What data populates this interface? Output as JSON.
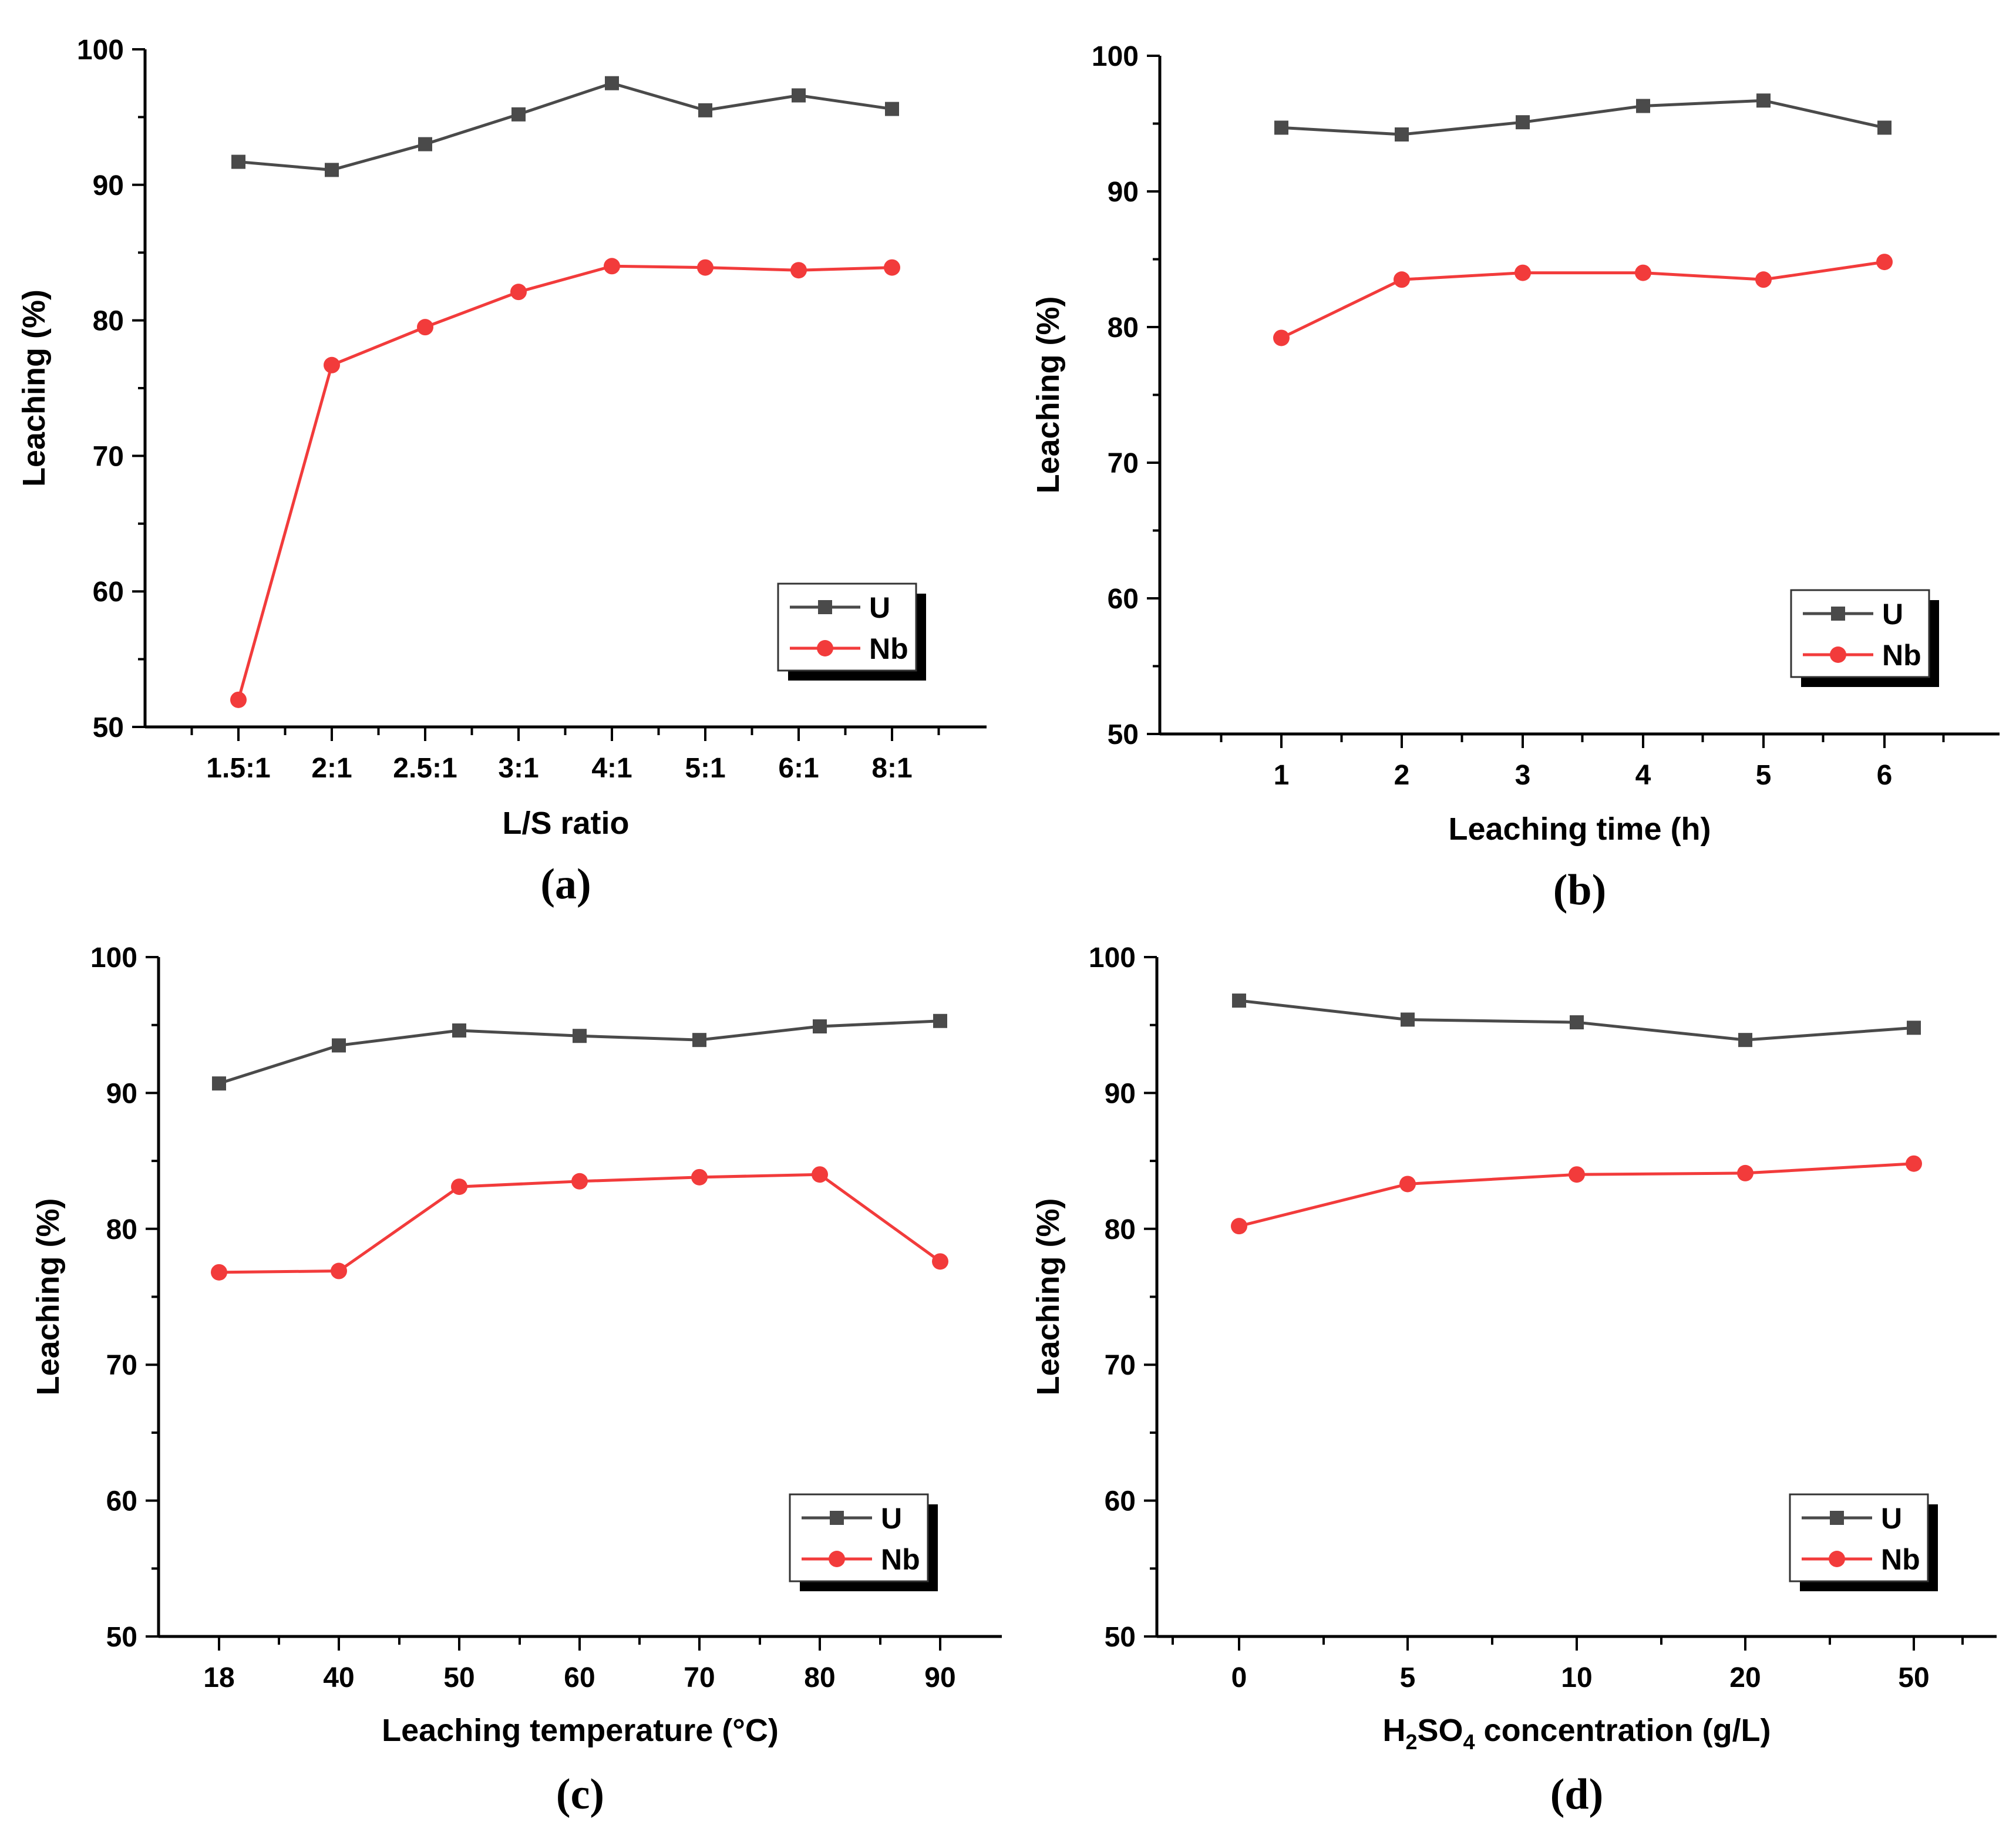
{
  "colors": {
    "U": "#4a4a4a",
    "Nb": "#f23b3b",
    "axis": "#000000"
  },
  "chart_data": [
    {
      "type": "line",
      "panel_label": "(a)",
      "xlabel": "L/S ratio",
      "ylabel": "Leaching (%)",
      "categories": [
        "1.5:1",
        "2:1",
        "2.5:1",
        "3:1",
        "4:1",
        "5:1",
        "6:1",
        "8:1"
      ],
      "ylim": [
        50,
        100
      ],
      "yticks": [
        50,
        60,
        70,
        80,
        90,
        100
      ],
      "legend_position": "bottom-right",
      "series": [
        {
          "name": "U",
          "marker": "square",
          "values": [
            91.7,
            91.1,
            93.0,
            95.2,
            97.5,
            95.5,
            96.6,
            95.6
          ]
        },
        {
          "name": "Nb",
          "marker": "circle",
          "values": [
            52.0,
            76.7,
            79.5,
            82.1,
            84.0,
            83.9,
            83.7,
            83.9
          ]
        }
      ]
    },
    {
      "type": "line",
      "panel_label": "(b)",
      "xlabel": "Leaching time (h)",
      "ylabel": "Leaching (%)",
      "categories": [
        "1",
        "2",
        "3",
        "4",
        "5",
        "6"
      ],
      "ylim": [
        50,
        100
      ],
      "yticks": [
        50,
        60,
        70,
        80,
        90,
        100
      ],
      "legend_position": "bottom-right",
      "series": [
        {
          "name": "U",
          "marker": "square",
          "values": [
            94.7,
            94.2,
            95.1,
            96.3,
            96.7,
            94.7
          ]
        },
        {
          "name": "Nb",
          "marker": "circle",
          "values": [
            79.2,
            83.5,
            84.0,
            84.0,
            83.5,
            84.8
          ]
        }
      ]
    },
    {
      "type": "line",
      "panel_label": "(c)",
      "xlabel": "Leaching temperature  (°C)",
      "ylabel": "Leaching (%)",
      "categories": [
        "18",
        "40",
        "50",
        "60",
        "70",
        "80",
        "90"
      ],
      "ylim": [
        50,
        100
      ],
      "yticks": [
        50,
        60,
        70,
        80,
        90,
        100
      ],
      "legend_position": "bottom-right",
      "series": [
        {
          "name": "U",
          "marker": "square",
          "values": [
            90.7,
            93.5,
            94.6,
            94.2,
            93.9,
            94.9,
            95.3
          ]
        },
        {
          "name": "Nb",
          "marker": "circle",
          "values": [
            76.8,
            76.9,
            83.1,
            83.5,
            83.8,
            84.0,
            77.6
          ]
        }
      ]
    },
    {
      "type": "line",
      "panel_label": "(d)",
      "xlabel_parts": [
        "H",
        "2",
        "SO",
        "4",
        " concentration (g/L)"
      ],
      "ylabel": "Leaching (%)",
      "categories": [
        "0",
        "5",
        "10",
        "20",
        "50"
      ],
      "ylim": [
        50,
        100
      ],
      "yticks": [
        50,
        60,
        70,
        80,
        90,
        100
      ],
      "legend_position": "bottom-right",
      "series": [
        {
          "name": "U",
          "marker": "square",
          "values": [
            96.8,
            95.4,
            95.2,
            93.9,
            94.8
          ]
        },
        {
          "name": "Nb",
          "marker": "circle",
          "values": [
            80.2,
            83.3,
            84.0,
            84.1,
            84.8
          ]
        }
      ]
    }
  ]
}
